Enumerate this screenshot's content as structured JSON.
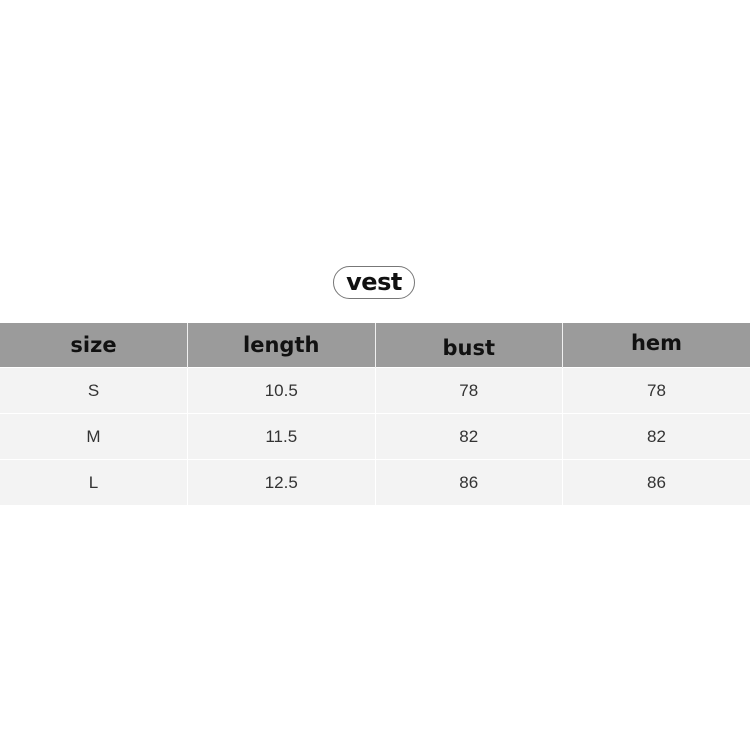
{
  "title": "vest",
  "table": {
    "headers": [
      "size",
      "length",
      "bust",
      "hem"
    ],
    "rows": [
      [
        "S",
        "10.5",
        "78",
        "78"
      ],
      [
        "M",
        "11.5",
        "82",
        "82"
      ],
      [
        "L",
        "12.5",
        "86",
        "86"
      ]
    ]
  }
}
